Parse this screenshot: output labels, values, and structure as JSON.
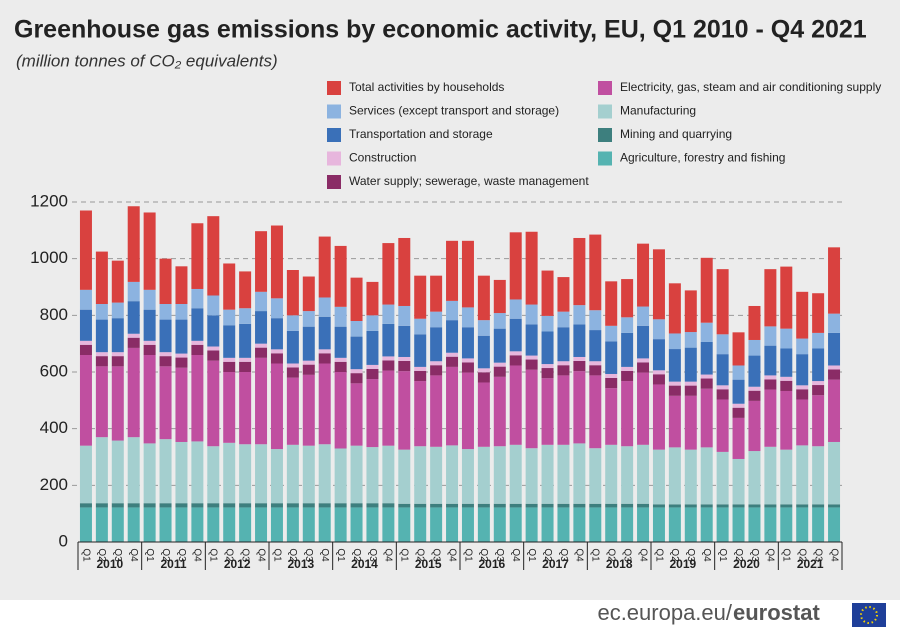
{
  "chart_data": {
    "type": "stacked-bar",
    "title": "Greenhouse gas emissions by economic activity, EU, Q1 2010 -  Q4 2021",
    "subtitle": "(million tonnes of CO₂ equivalents)",
    "source": {
      "site": "ec.europa.eu/",
      "brand": "eurostat"
    },
    "categories": [
      "Q1",
      "Q2",
      "Q3",
      "Q4",
      "Q1",
      "Q2",
      "Q3",
      "Q4",
      "Q1",
      "Q2",
      "Q3",
      "Q4",
      "Q1",
      "Q2",
      "Q3",
      "Q4",
      "Q1",
      "Q2",
      "Q3",
      "Q4",
      "Q1",
      "Q2",
      "Q3",
      "Q4",
      "Q1",
      "Q2",
      "Q3",
      "Q4",
      "Q1",
      "Q2",
      "Q3",
      "Q4",
      "Q1",
      "Q2",
      "Q3",
      "Q4",
      "Q1",
      "Q2",
      "Q3",
      "Q4",
      "Q1",
      "Q2",
      "Q3",
      "Q4",
      "Q1",
      "Q2",
      "Q3",
      "Q4"
    ],
    "years": [
      "2010",
      "2011",
      "2012",
      "2013",
      "2014",
      "2015",
      "2016",
      "2017",
      "2018",
      "2019",
      "2020",
      "2021"
    ],
    "ylim": [
      0,
      1200
    ],
    "yticks": [
      0,
      200,
      400,
      600,
      800,
      1000,
      1200
    ],
    "grid": true,
    "series": [
      {
        "name": "Agriculture, forestry and fishing",
        "color": "#55b3b1",
        "values": [
          122,
          122,
          122,
          122,
          122,
          122,
          122,
          122,
          122,
          122,
          122,
          122,
          122,
          122,
          122,
          122,
          122,
          122,
          122,
          122,
          122,
          122,
          122,
          122,
          122,
          122,
          122,
          122,
          122,
          122,
          122,
          122,
          122,
          122,
          122,
          122,
          122,
          122,
          122,
          122,
          122,
          122,
          122,
          122,
          122,
          122,
          122,
          122
        ]
      },
      {
        "name": "Mining and quarrying",
        "color": "#3d7f7e",
        "values": [
          15,
          15,
          15,
          15,
          15,
          15,
          15,
          15,
          15,
          15,
          15,
          15,
          15,
          15,
          15,
          15,
          15,
          15,
          15,
          15,
          13,
          13,
          13,
          13,
          13,
          13,
          13,
          13,
          13,
          13,
          13,
          13,
          13,
          13,
          13,
          13,
          11,
          11,
          11,
          11,
          11,
          11,
          11,
          11,
          11,
          11,
          11,
          11
        ]
      },
      {
        "name": "Manufacturing",
        "color": "#a4cfcf",
        "values": [
          203,
          233,
          221,
          233,
          211,
          226,
          216,
          218,
          201,
          213,
          208,
          208,
          191,
          206,
          203,
          208,
          193,
          203,
          198,
          203,
          191,
          203,
          201,
          206,
          193,
          201,
          203,
          208,
          196,
          208,
          208,
          213,
          196,
          208,
          203,
          208,
          193,
          201,
          193,
          201,
          185,
          160,
          188,
          203,
          193,
          208,
          205,
          220
        ]
      },
      {
        "name": "Electricity, gas, steam and air conditioning supply",
        "color": "#c04fa0",
        "values": [
          320,
          250,
          262,
          315,
          312,
          257,
          262,
          305,
          302,
          250,
          255,
          305,
          302,
          237,
          250,
          285,
          270,
          220,
          240,
          265,
          277,
          230,
          252,
          277,
          270,
          227,
          245,
          280,
          277,
          235,
          245,
          255,
          257,
          200,
          230,
          255,
          230,
          182,
          190,
          207,
          185,
          145,
          177,
          202,
          207,
          162,
          180,
          220
        ]
      },
      {
        "name": "Water supply; sewerage, waste management",
        "color": "#8a2c66",
        "values": [
          36,
          36,
          36,
          36,
          36,
          36,
          36,
          36,
          36,
          36,
          36,
          36,
          36,
          36,
          36,
          36,
          36,
          36,
          36,
          36,
          36,
          36,
          36,
          36,
          36,
          36,
          36,
          36,
          36,
          36,
          36,
          36,
          36,
          36,
          36,
          36,
          36,
          36,
          36,
          36,
          36,
          36,
          36,
          36,
          36,
          36,
          36,
          36
        ]
      },
      {
        "name": "Construction",
        "color": "#e7b6dd",
        "values": [
          14,
          14,
          14,
          14,
          14,
          14,
          14,
          14,
          14,
          14,
          14,
          14,
          14,
          14,
          14,
          14,
          14,
          14,
          14,
          14,
          14,
          14,
          14,
          14,
          14,
          14,
          14,
          14,
          14,
          14,
          14,
          14,
          14,
          14,
          14,
          14,
          14,
          14,
          14,
          14,
          14,
          14,
          14,
          14,
          14,
          14,
          14,
          14
        ]
      },
      {
        "name": "Transportation and storage",
        "color": "#3a70b8",
        "values": [
          110,
          115,
          120,
          115,
          110,
          115,
          120,
          115,
          110,
          115,
          120,
          115,
          110,
          115,
          120,
          115,
          110,
          115,
          120,
          115,
          110,
          115,
          120,
          115,
          110,
          115,
          120,
          115,
          110,
          115,
          120,
          115,
          110,
          115,
          120,
          115,
          110,
          115,
          120,
          115,
          110,
          85,
          110,
          105,
          100,
          110,
          115,
          115
        ]
      },
      {
        "name": "Services (except transport and storage)",
        "color": "#8cb3e0",
        "values": [
          70,
          55,
          55,
          68,
          70,
          55,
          55,
          68,
          70,
          55,
          55,
          68,
          70,
          55,
          55,
          68,
          70,
          55,
          55,
          68,
          70,
          55,
          55,
          68,
          70,
          55,
          55,
          68,
          70,
          55,
          55,
          68,
          70,
          55,
          55,
          68,
          70,
          55,
          55,
          68,
          70,
          50,
          55,
          68,
          70,
          55,
          55,
          68
        ]
      },
      {
        "name": "Total activities by households",
        "color": "#d9413f",
        "values": [
          280,
          185,
          148,
          267,
          273,
          160,
          133,
          232,
          280,
          163,
          130,
          214,
          257,
          160,
          122,
          215,
          215,
          153,
          118,
          217,
          240,
          152,
          127,
          212,
          235,
          157,
          117,
          237,
          257,
          160,
          122,
          237,
          267,
          157,
          135,
          222,
          247,
          177,
          147,
          229,
          230,
          117,
          120,
          202,
          219,
          165,
          140,
          234
        ]
      }
    ]
  }
}
